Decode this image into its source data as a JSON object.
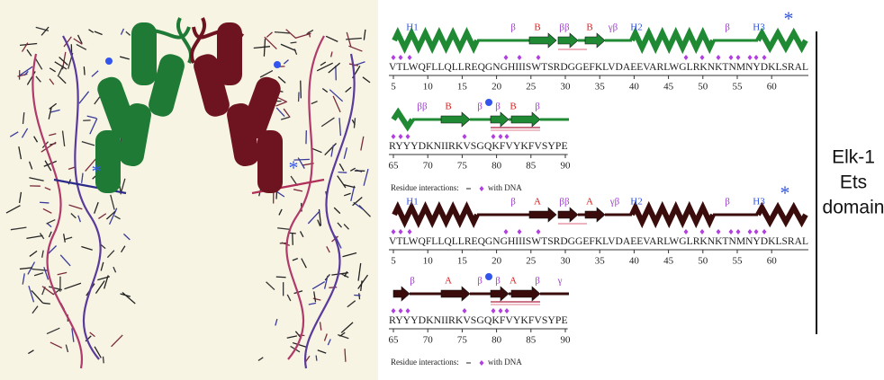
{
  "left_image": {
    "markers": [
      "*",
      "*"
    ]
  },
  "panels": [
    {
      "rows": [
        {
          "structure_labels": [
            "H1",
            "β",
            "B",
            "ββ",
            "B",
            "γβ",
            "H2",
            "β",
            "H3",
            "*"
          ],
          "sequence": "VTLWQFLLQLLREQGNGHIIISWTSRDGGEFKLVDAEEVARLWGLRKNKTNMNYDKLSRAL",
          "numbers": [
            5,
            10,
            15,
            20,
            25,
            30,
            35,
            40,
            45,
            50,
            55,
            60
          ]
        },
        {
          "structure_labels": [
            "ββ",
            "B",
            "β",
            "β",
            "B",
            "β"
          ],
          "sequence": "RYYYDKNIIRKVSGQKFVYKFVSYPE",
          "numbers": [
            65,
            70,
            75,
            80,
            85,
            90
          ]
        }
      ],
      "legend": {
        "label": "Residue interactions:",
        "dna": "with DNA"
      }
    },
    {
      "rows": [
        {
          "structure_labels": [
            "H1",
            "β",
            "A",
            "ββ",
            "A",
            "γβ",
            "H2",
            "β",
            "H3",
            "*"
          ],
          "sequence": "VTLWQFLLQLLREQGNGHIIISWTSRDGGEFKLVDAEEVARLWGLRKNKTNMNYDKLSRAL",
          "numbers": [
            5,
            10,
            15,
            20,
            25,
            30,
            35,
            40,
            45,
            50,
            55,
            60
          ]
        },
        {
          "structure_labels": [
            "β",
            "A",
            "β",
            "β",
            "A",
            "β",
            "γ"
          ],
          "sequence": "RYYYDKNIIRKVSGQKFVYKFVSYPE",
          "numbers": [
            65,
            70,
            75,
            80,
            85,
            90
          ]
        }
      ],
      "legend": {
        "label": "Residue interactions:",
        "dna": "with DNA"
      }
    }
  ],
  "side_label": [
    "Elk-1",
    "Ets",
    "domain"
  ]
}
